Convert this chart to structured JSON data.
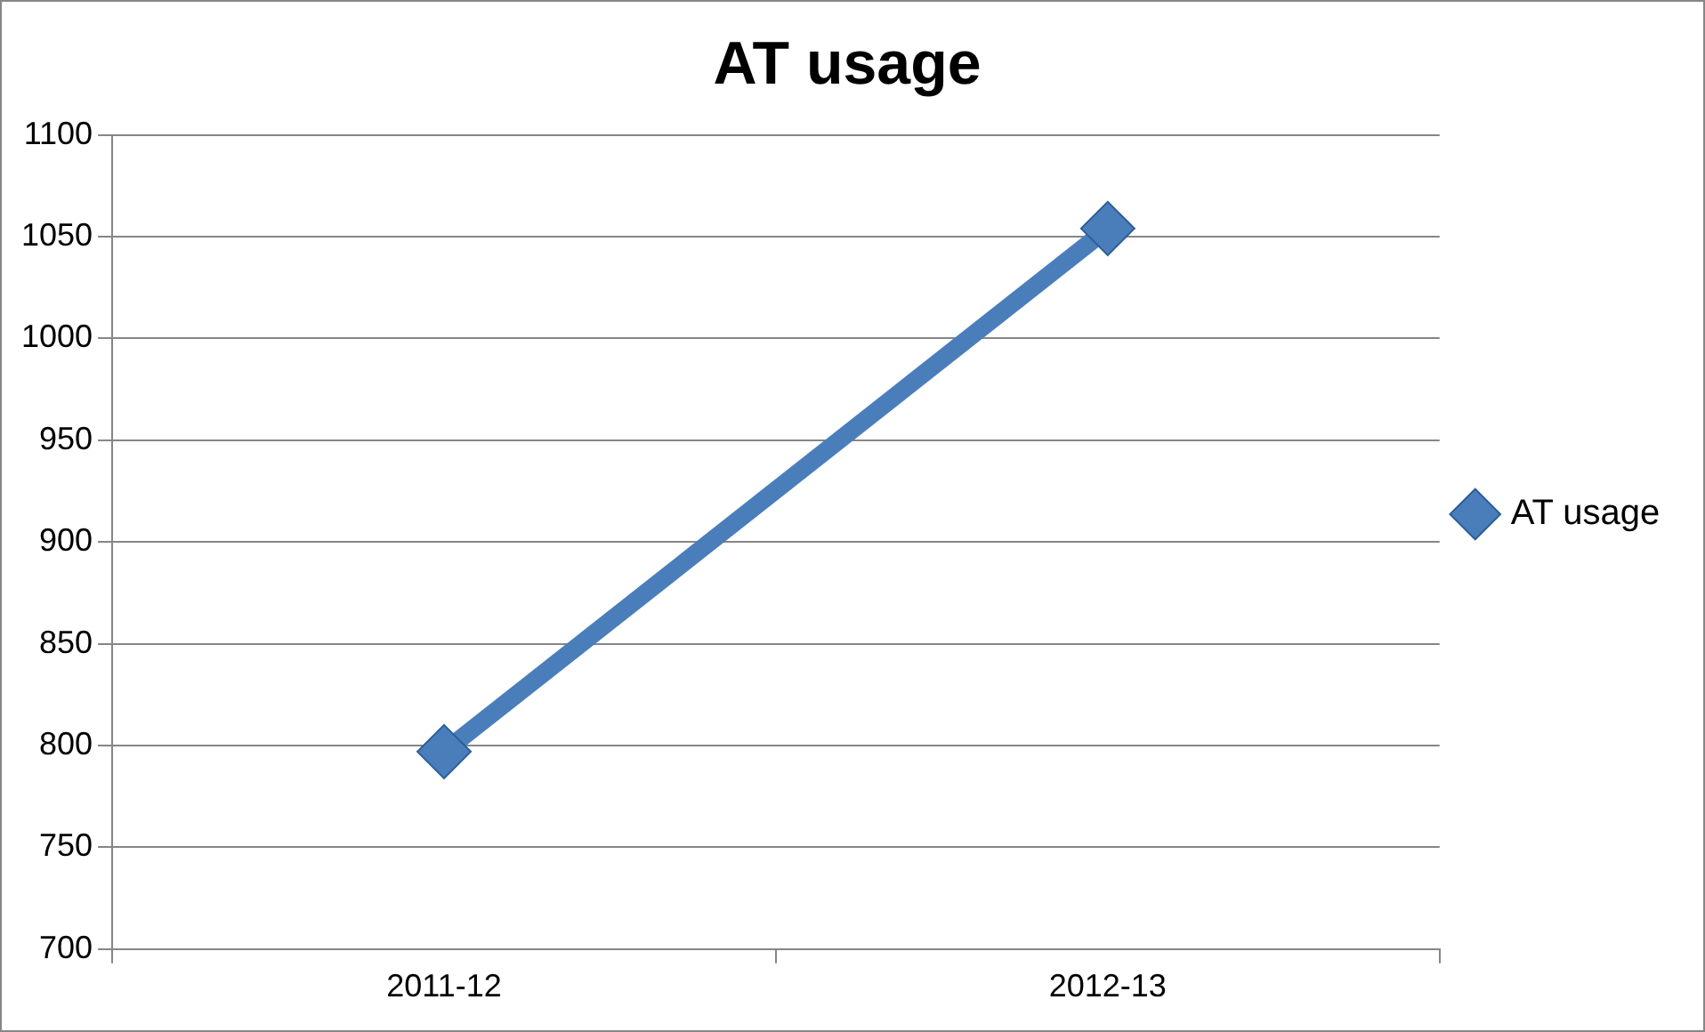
{
  "chart_data": {
    "type": "line",
    "title": "AT usage",
    "categories": [
      "2011-12",
      "2012-13"
    ],
    "series": [
      {
        "name": "AT usage",
        "color": "#4a7ebb",
        "values": [
          797,
          1054
        ]
      }
    ],
    "ylim": [
      700,
      1100
    ],
    "yticks": [
      700,
      750,
      800,
      850,
      900,
      950,
      1000,
      1050,
      1100
    ],
    "grid": "y",
    "legend": "right",
    "marker": "diamond",
    "line_style": "solid"
  }
}
